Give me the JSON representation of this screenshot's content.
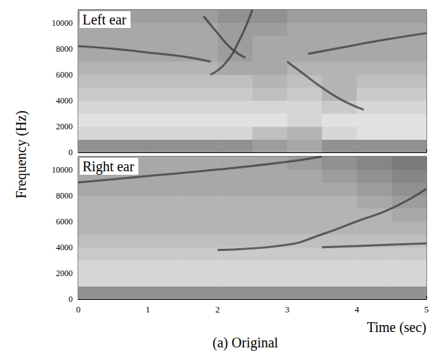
{
  "chart_data": [
    {
      "type": "heatmap",
      "title": "Left ear",
      "xlim": [
        0,
        5
      ],
      "xticks": [
        0,
        1,
        2,
        3,
        4,
        5
      ],
      "ylim": [
        0,
        11000
      ],
      "yticks": [
        0,
        2000,
        4000,
        6000,
        8000,
        10000
      ],
      "tick_labels": "y",
      "x_bins": [
        0,
        0.5,
        1,
        1.5,
        2,
        2.5,
        3,
        3.5,
        4,
        4.5,
        5
      ],
      "y_bins": [
        0,
        1000,
        2000,
        3000,
        4000,
        5000,
        6000,
        7000,
        8000,
        9000,
        10000,
        11000
      ],
      "color_range": [
        0,
        1
      ],
      "cells": [
        [
          0.45,
          0.45,
          0.45,
          0.45,
          0.45,
          0.4,
          0.35,
          0.45,
          0.45,
          0.45
        ],
        [
          0.15,
          0.15,
          0.15,
          0.15,
          0.15,
          0.25,
          0.3,
          0.15,
          0.1,
          0.1
        ],
        [
          0.1,
          0.1,
          0.1,
          0.1,
          0.1,
          0.1,
          0.15,
          0.1,
          0.1,
          0.1
        ],
        [
          0.15,
          0.15,
          0.15,
          0.15,
          0.15,
          0.15,
          0.15,
          0.2,
          0.15,
          0.15
        ],
        [
          0.2,
          0.2,
          0.2,
          0.2,
          0.2,
          0.25,
          0.2,
          0.3,
          0.2,
          0.2
        ],
        [
          0.25,
          0.25,
          0.25,
          0.25,
          0.25,
          0.3,
          0.25,
          0.3,
          0.25,
          0.25
        ],
        [
          0.3,
          0.3,
          0.3,
          0.3,
          0.35,
          0.35,
          0.3,
          0.3,
          0.3,
          0.3
        ],
        [
          0.35,
          0.35,
          0.35,
          0.35,
          0.4,
          0.35,
          0.35,
          0.35,
          0.35,
          0.35
        ],
        [
          0.35,
          0.35,
          0.35,
          0.35,
          0.4,
          0.35,
          0.35,
          0.35,
          0.35,
          0.35
        ],
        [
          0.35,
          0.35,
          0.35,
          0.35,
          0.4,
          0.4,
          0.35,
          0.35,
          0.35,
          0.35
        ],
        [
          0.4,
          0.4,
          0.4,
          0.4,
          0.45,
          0.45,
          0.4,
          0.4,
          0.4,
          0.4
        ]
      ],
      "series": [
        {
          "type": "line",
          "color": "#3a3a3a",
          "line_style": "solid",
          "x": [
            0,
            0.5,
            1,
            1.5,
            1.9
          ],
          "values": [
            8200,
            8000,
            7700,
            7400,
            7000
          ]
        },
        {
          "type": "line",
          "color": "#3a3a3a",
          "line_style": "solid",
          "x": [
            1.9,
            2.1,
            2.3,
            2.5
          ],
          "values": [
            6000,
            6800,
            8500,
            11000
          ]
        },
        {
          "type": "line",
          "color": "#3a3a3a",
          "line_style": "solid",
          "x": [
            1.8,
            2.0,
            2.2,
            2.4
          ],
          "values": [
            10500,
            9200,
            8000,
            7300
          ]
        },
        {
          "type": "line",
          "color": "#3a3a3a",
          "line_style": "solid",
          "x": [
            3.0,
            3.2,
            3.5,
            3.8,
            4.1
          ],
          "values": [
            7000,
            6200,
            5000,
            4000,
            3300
          ]
        },
        {
          "type": "line",
          "color": "#3a3a3a",
          "line_style": "solid",
          "x": [
            3.3,
            3.8,
            4.3,
            5
          ],
          "values": [
            7600,
            8100,
            8600,
            9200
          ]
        }
      ]
    },
    {
      "type": "heatmap",
      "title": "Right ear",
      "xlabel": "Time (sec)",
      "xlim": [
        0,
        5
      ],
      "xticks": [
        0,
        1,
        2,
        3,
        4,
        5
      ],
      "ylim": [
        0,
        11000
      ],
      "yticks": [
        0,
        2000,
        4000,
        6000,
        8000,
        10000
      ],
      "x_bins": [
        0,
        0.5,
        1,
        1.5,
        2,
        2.5,
        3,
        3.5,
        4,
        4.5,
        5
      ],
      "y_bins": [
        0,
        1000,
        2000,
        3000,
        4000,
        5000,
        6000,
        7000,
        8000,
        9000,
        10000,
        11000
      ],
      "color_range": [
        0,
        1
      ],
      "cells": [
        [
          0.45,
          0.45,
          0.45,
          0.45,
          0.45,
          0.45,
          0.45,
          0.45,
          0.45,
          0.45
        ],
        [
          0.15,
          0.15,
          0.15,
          0.15,
          0.15,
          0.15,
          0.15,
          0.15,
          0.15,
          0.15
        ],
        [
          0.15,
          0.15,
          0.15,
          0.15,
          0.15,
          0.15,
          0.15,
          0.15,
          0.15,
          0.15
        ],
        [
          0.2,
          0.2,
          0.2,
          0.2,
          0.2,
          0.2,
          0.2,
          0.2,
          0.2,
          0.2
        ],
        [
          0.25,
          0.25,
          0.25,
          0.25,
          0.25,
          0.25,
          0.25,
          0.25,
          0.25,
          0.25
        ],
        [
          0.3,
          0.3,
          0.3,
          0.3,
          0.3,
          0.3,
          0.3,
          0.3,
          0.3,
          0.3
        ],
        [
          0.3,
          0.3,
          0.3,
          0.3,
          0.3,
          0.3,
          0.3,
          0.3,
          0.3,
          0.35
        ],
        [
          0.3,
          0.3,
          0.3,
          0.3,
          0.3,
          0.3,
          0.3,
          0.3,
          0.35,
          0.4
        ],
        [
          0.35,
          0.35,
          0.35,
          0.35,
          0.35,
          0.35,
          0.35,
          0.35,
          0.4,
          0.45
        ],
        [
          0.35,
          0.35,
          0.35,
          0.35,
          0.35,
          0.35,
          0.35,
          0.4,
          0.45,
          0.5
        ],
        [
          0.35,
          0.35,
          0.35,
          0.35,
          0.35,
          0.35,
          0.4,
          0.45,
          0.5,
          0.55
        ]
      ],
      "series": [
        {
          "type": "line",
          "color": "#3a3a3a",
          "line_style": "solid",
          "x": [
            0,
            1,
            2,
            3,
            3.5
          ],
          "values": [
            9000,
            9500,
            10000,
            10600,
            11000
          ]
        },
        {
          "type": "line",
          "color": "#3a3a3a",
          "line_style": "solid",
          "x": [
            2,
            3,
            3.5,
            4,
            4.5,
            5
          ],
          "values": [
            3800,
            4200,
            5000,
            6000,
            7000,
            8500
          ]
        },
        {
          "type": "line",
          "color": "#3a3a3a",
          "line_style": "solid",
          "x": [
            3.5,
            4,
            4.5,
            5
          ],
          "values": [
            4000,
            4100,
            4200,
            4300
          ]
        }
      ]
    }
  ],
  "ylabel": "Frequency (Hz)",
  "caption": "(a) Original"
}
